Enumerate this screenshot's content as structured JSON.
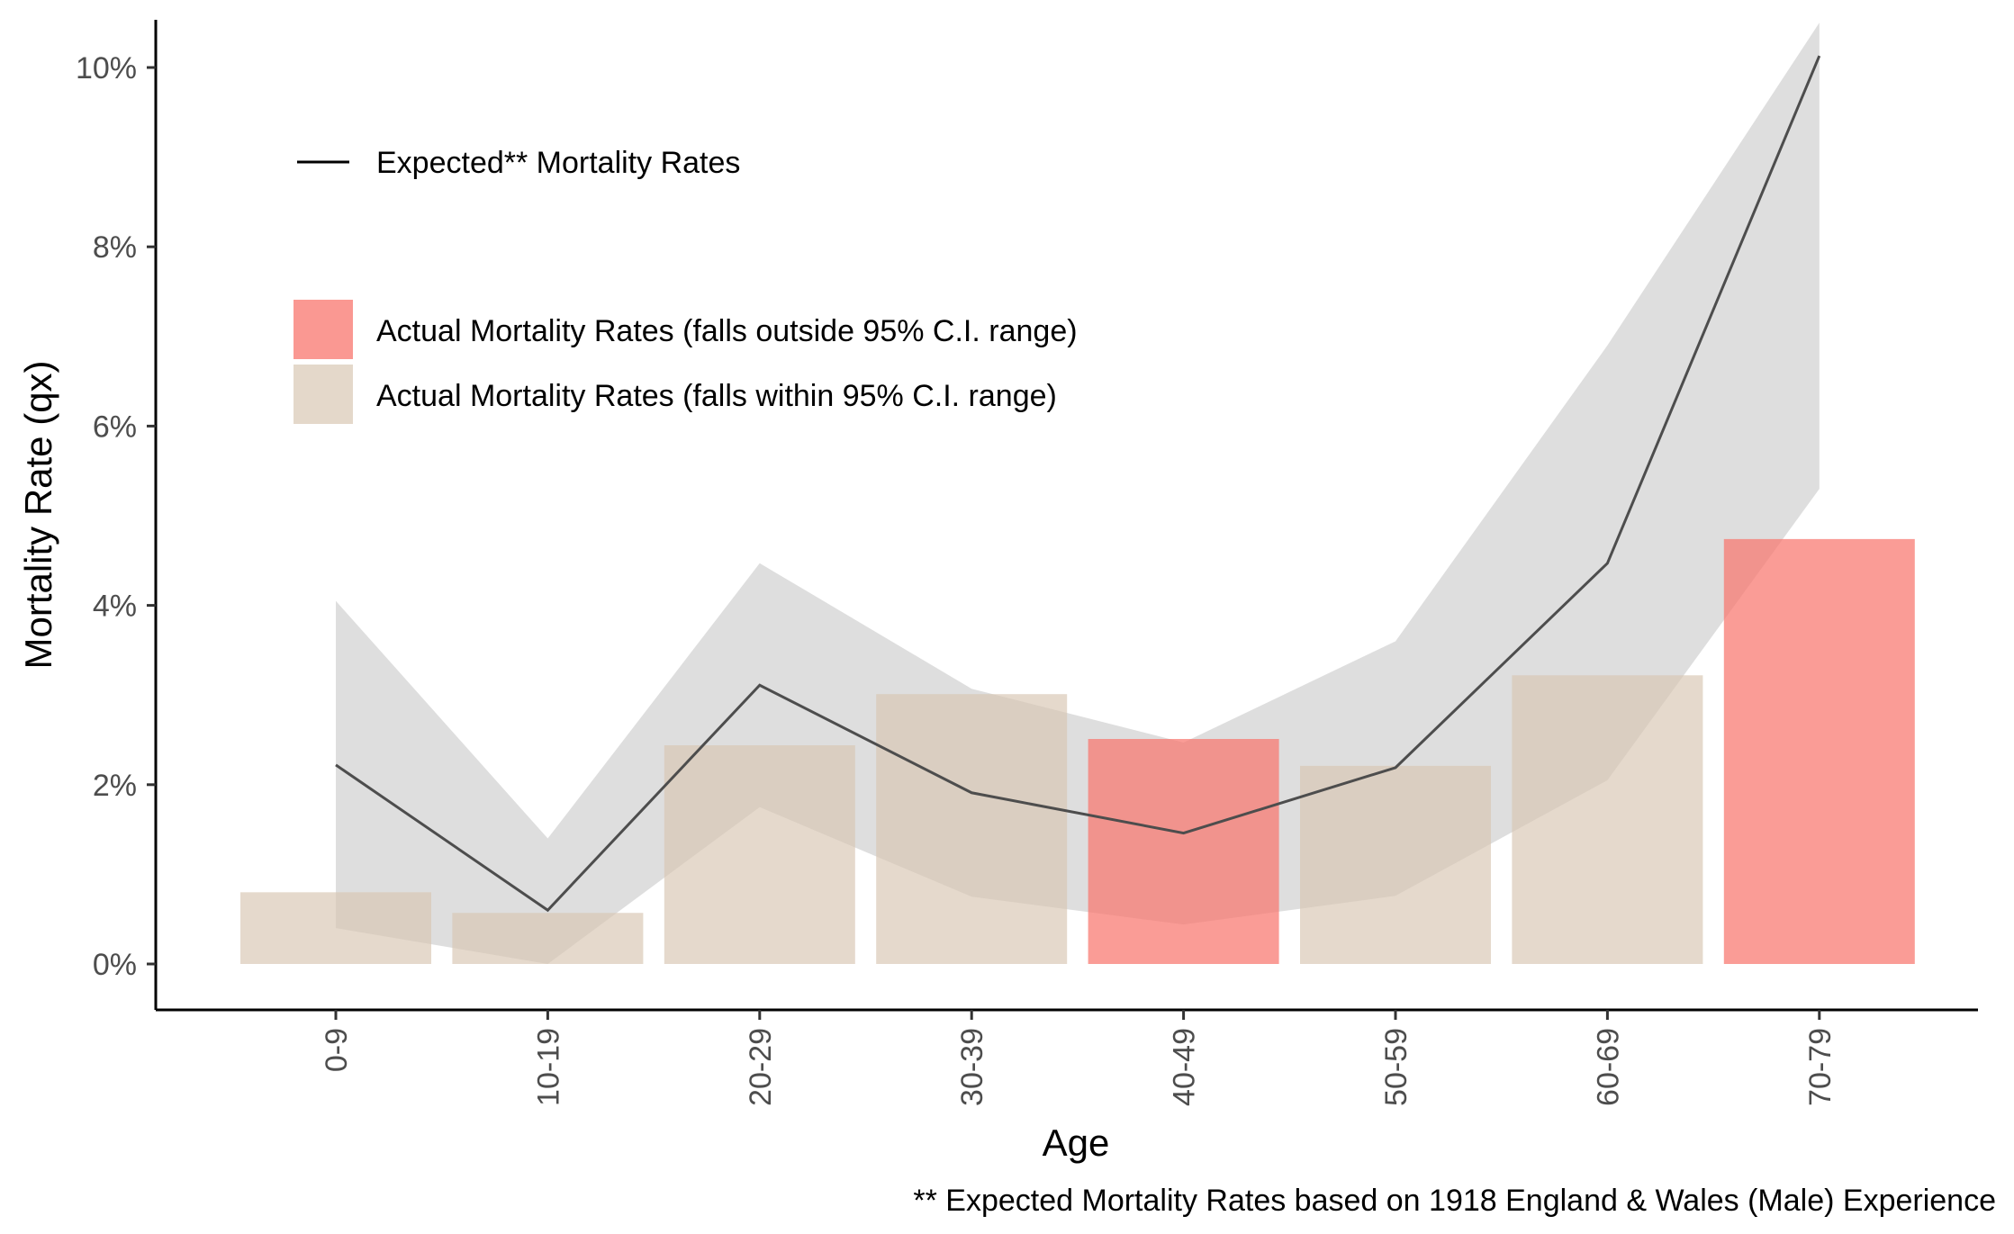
{
  "chart_data": {
    "type": "bar",
    "xlabel": "Age",
    "ylabel": "Mortality Rate (qx)",
    "caption": "** Expected Mortality Rates based on 1918 England & Wales (Male) Experience",
    "categories": [
      "0-9",
      "10-19",
      "20-29",
      "30-39",
      "40-49",
      "50-59",
      "60-69",
      "70-79"
    ],
    "y_ticks": [
      {
        "value": 0,
        "label": "0%"
      },
      {
        "value": 2,
        "label": "2%"
      },
      {
        "value": 4,
        "label": "4%"
      },
      {
        "value": 6,
        "label": "6%"
      },
      {
        "value": 8,
        "label": "8%"
      },
      {
        "value": 10,
        "label": "10%"
      }
    ],
    "ylim": [
      -0.5,
      10.5
    ],
    "y_unit": "%",
    "grid": false,
    "legend_placement": "top-left",
    "series": [
      {
        "name": "Actual Mortality Rates",
        "kind": "bar",
        "values": [
          0.8,
          0.57,
          2.44,
          3.01,
          2.51,
          2.21,
          3.22,
          4.74
        ],
        "within_ci": [
          true,
          true,
          true,
          true,
          false,
          true,
          true,
          false
        ]
      },
      {
        "name": "Expected** Mortality Rates",
        "kind": "line",
        "values": [
          2.22,
          0.6,
          3.11,
          1.91,
          1.46,
          2.19,
          4.47,
          10.13
        ]
      },
      {
        "name": "95% C.I. range",
        "kind": "ribbon",
        "lower": [
          0.4,
          0.0,
          1.75,
          0.75,
          0.44,
          0.76,
          2.05,
          5.3
        ],
        "upper": [
          4.05,
          1.4,
          4.47,
          3.07,
          2.47,
          3.6,
          6.9,
          10.5
        ]
      }
    ],
    "legend": {
      "line_label": "Expected** Mortality Rates",
      "outside_label": "Actual Mortality Rates (falls outside 95% C.I. range)",
      "within_label": "Actual Mortality Rates (falls within 95% C.I. range)"
    },
    "colors": {
      "outside_ci": "#f8766d",
      "within_ci": "#d9c7b4",
      "ribbon": "#bebebe",
      "line": "#4d4d4d",
      "axis": "#000000"
    }
  }
}
